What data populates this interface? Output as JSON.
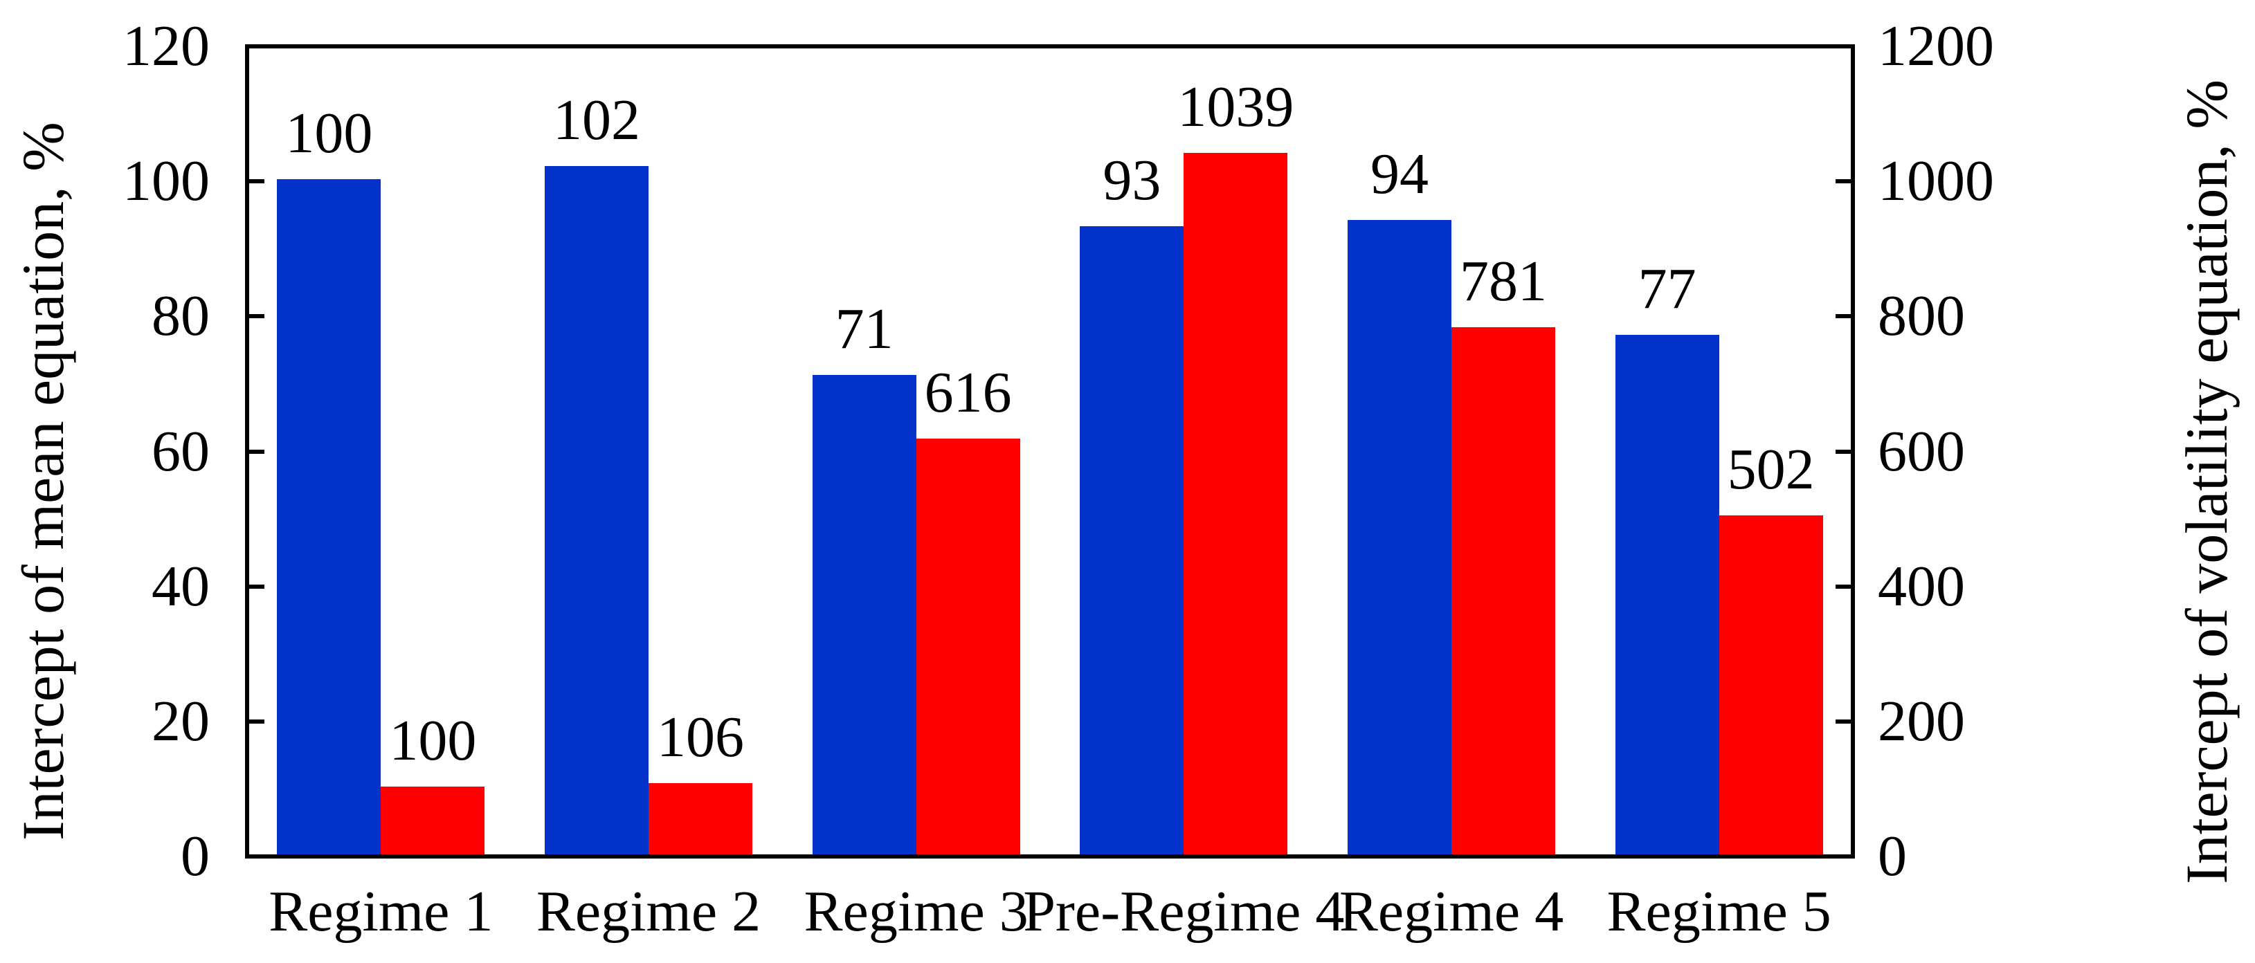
{
  "chart_data": {
    "type": "bar",
    "title": "",
    "grid": false,
    "legend_position": "none",
    "categories": [
      "Regime 1",
      "Regime 2",
      "Regime 3",
      "Pre-Regime 4",
      "Regime 4",
      "Regime 5"
    ],
    "series": [
      {
        "name": "Intercept of mean equation, %",
        "axis": "left",
        "color": "#0433cc",
        "values": [
          100,
          102,
          71,
          93,
          94,
          77
        ],
        "labels": [
          "100",
          "102",
          "71",
          "93",
          "94",
          "77"
        ]
      },
      {
        "name": "Intercept of volatility equation, %",
        "axis": "right",
        "color": "#fe0000",
        "values": [
          100,
          106,
          616,
          1039,
          781,
          502
        ],
        "labels": [
          "100",
          "106",
          "616",
          "1039",
          "781",
          "502"
        ]
      }
    ],
    "left_axis": {
      "label": "Intercept of mean equation, %",
      "min": 0,
      "max": 120,
      "tick_step": 20,
      "ticks": [
        0,
        20,
        40,
        60,
        80,
        100,
        120
      ]
    },
    "right_axis": {
      "label": "Intercept of volatility equation, %",
      "min": 0,
      "max": 1200,
      "tick_step": 200,
      "ticks": [
        0,
        200,
        400,
        600,
        800,
        1000,
        1200
      ]
    }
  },
  "colors": {
    "mean_bar": "#0433cc",
    "volatility_bar": "#fe0000",
    "axis": "#000000",
    "background": "#ffffff",
    "text": "#000000"
  }
}
